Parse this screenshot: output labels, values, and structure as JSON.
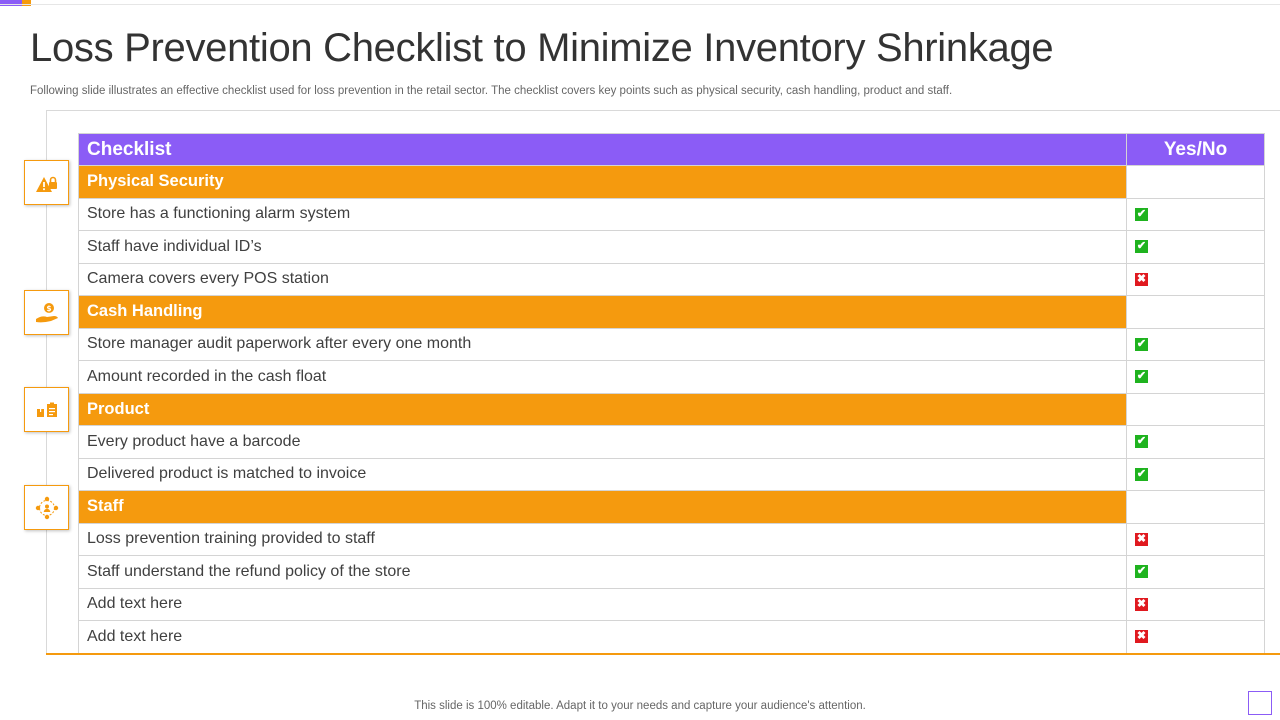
{
  "title": "Loss Prevention Checklist to Minimize Inventory Shrinkage",
  "subtitle": "Following slide illustrates an effective checklist used for loss prevention in the retail sector. The checklist covers key points such as physical security, cash handling, product and staff.",
  "table": {
    "header": {
      "checklist": "Checklist",
      "yes_no": "Yes/No"
    },
    "rows": [
      {
        "type": "category",
        "label": "Physical Security",
        "icon": "security-alert-icon"
      },
      {
        "type": "item",
        "label": "Store has a functioning  alarm system",
        "status": "yes"
      },
      {
        "type": "item",
        "label": "Staff have individual ID’s",
        "status": "yes"
      },
      {
        "type": "item",
        "label": "Camera covers every POS station",
        "status": "no"
      },
      {
        "type": "category",
        "label": "Cash Handling",
        "icon": "cash-hand-icon"
      },
      {
        "type": "item",
        "label": "Store manager audit paperwork after every  one month",
        "status": "yes"
      },
      {
        "type": "item",
        "label": "Amount recorded in the cash float",
        "status": "yes"
      },
      {
        "type": "category",
        "label": "Product",
        "icon": "product-boxes-icon"
      },
      {
        "type": "item",
        "label": "Every product have a barcode",
        "status": "yes"
      },
      {
        "type": "item",
        "label": "Delivered product is matched to invoice",
        "status": "yes"
      },
      {
        "type": "category",
        "label": "Staff",
        "icon": "staff-network-icon"
      },
      {
        "type": "item",
        "label": "Loss prevention training provided to staff",
        "status": "no"
      },
      {
        "type": "item",
        "label": "Staff understand  the refund policy of the store",
        "status": "yes"
      },
      {
        "type": "item",
        "label": "Add text here",
        "status": "no"
      },
      {
        "type": "item",
        "label": "Add text here",
        "status": "no"
      }
    ]
  },
  "status_icons": {
    "yes": "green-check-icon",
    "no": "red-cross-icon"
  },
  "colors": {
    "header": "#8B5CF6",
    "category": "#F59A0E",
    "yes": "#1FB31F",
    "no": "#E0191F"
  },
  "footer": "This slide is 100% editable. Adapt it to your needs and capture your audience's attention."
}
